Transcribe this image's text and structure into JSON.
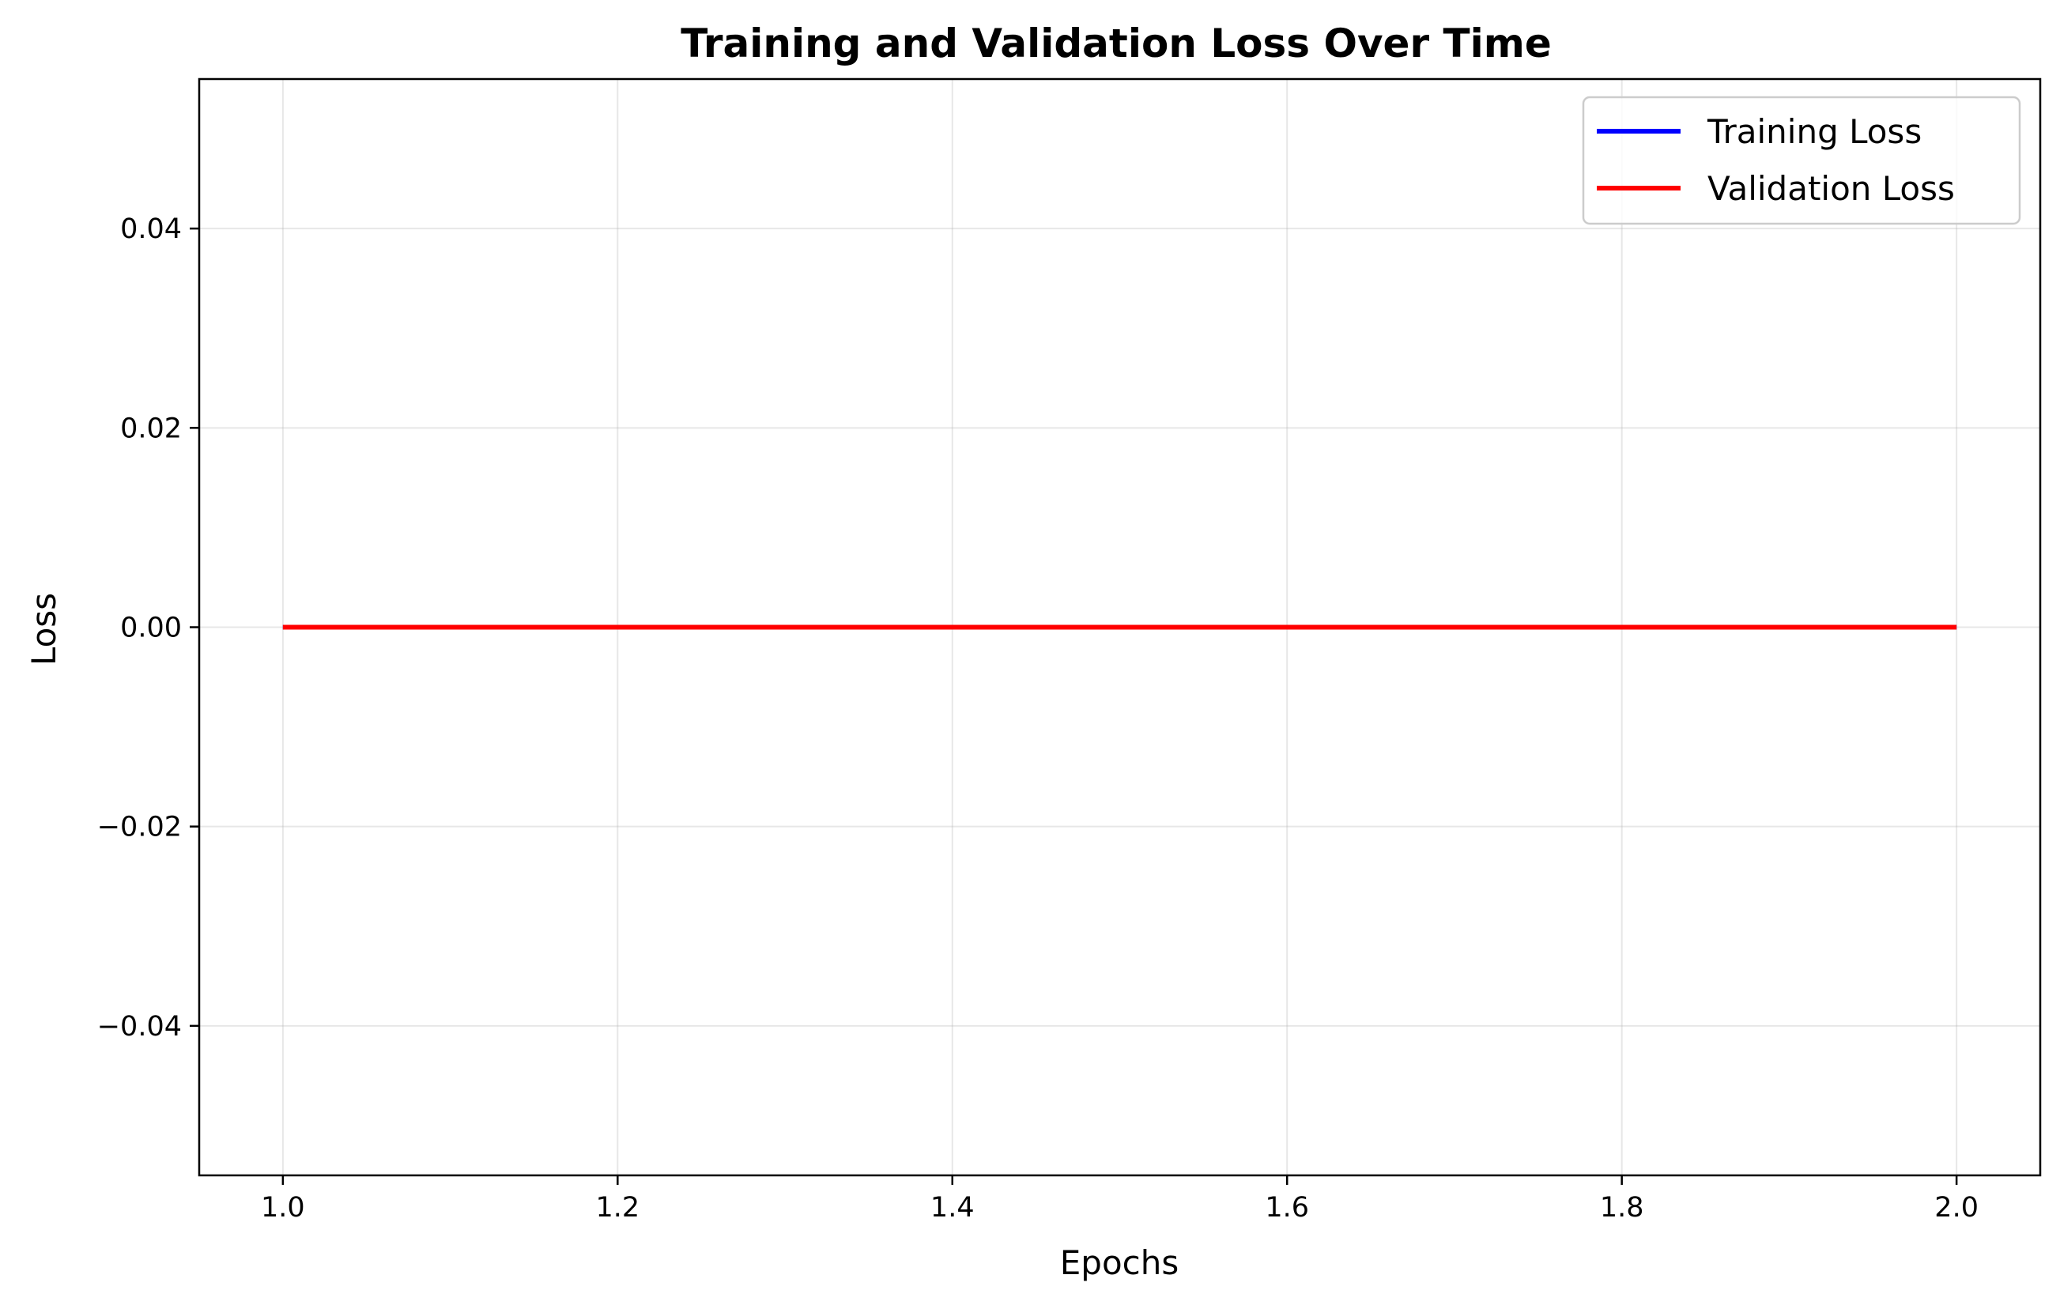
{
  "chart_data": {
    "type": "line",
    "title": "Training and Validation Loss Over Time",
    "xlabel": "Epochs",
    "ylabel": "Loss",
    "x": [
      1,
      2
    ],
    "series": [
      {
        "name": "Training Loss",
        "values": [
          0,
          0
        ],
        "color": "#0000ff"
      },
      {
        "name": "Validation Loss",
        "values": [
          0,
          0
        ],
        "color": "#ff0000"
      }
    ],
    "xlim": [
      0.95,
      2.05
    ],
    "ylim": [
      -0.055,
      0.055
    ],
    "xticks": [
      {
        "value": 1.0,
        "label": "1.0"
      },
      {
        "value": 1.2,
        "label": "1.2"
      },
      {
        "value": 1.4,
        "label": "1.4"
      },
      {
        "value": 1.6,
        "label": "1.6"
      },
      {
        "value": 1.8,
        "label": "1.8"
      },
      {
        "value": 2.0,
        "label": "2.0"
      }
    ],
    "yticks": [
      {
        "value": -0.04,
        "label": "−0.04"
      },
      {
        "value": -0.02,
        "label": "−0.02"
      },
      {
        "value": 0.0,
        "label": "0.00"
      },
      {
        "value": 0.02,
        "label": "0.02"
      },
      {
        "value": 0.04,
        "label": "0.04"
      }
    ],
    "grid": true,
    "legend_position": "top-right"
  }
}
